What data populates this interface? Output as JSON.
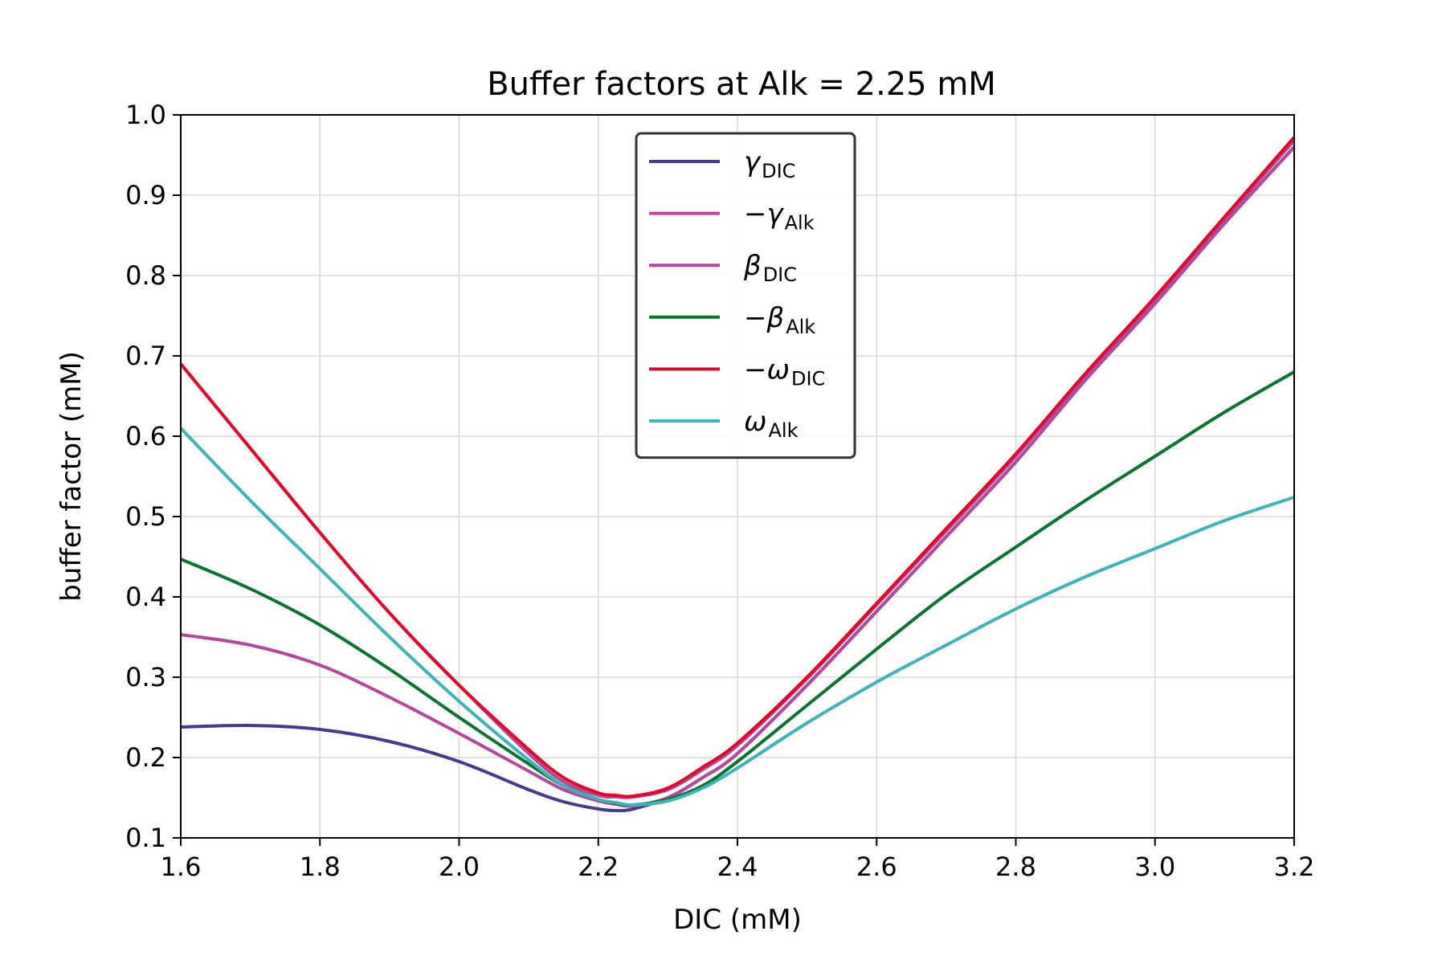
{
  "chart_data": {
    "type": "line",
    "title": "Buffer factors at Alk = 2.25 mM",
    "xlabel": "DIC (mM)",
    "ylabel": "buffer factor (mM)",
    "xlim": [
      1.6,
      3.2
    ],
    "ylim": [
      0.1,
      1.0
    ],
    "xticks": [
      "1.6",
      "1.8",
      "2.0",
      "2.2",
      "2.4",
      "2.6",
      "2.8",
      "3.0",
      "3.2"
    ],
    "yticks": [
      "0.1",
      "0.2",
      "0.3",
      "0.4",
      "0.5",
      "0.6",
      "0.7",
      "0.8",
      "0.9",
      "1.0"
    ],
    "grid": true,
    "legend_position": "upper center",
    "x": [
      1.6,
      1.7,
      1.8,
      1.9,
      2.0,
      2.1,
      2.15,
      2.2,
      2.225,
      2.25,
      2.3,
      2.35,
      2.4,
      2.5,
      2.6,
      2.7,
      2.8,
      2.9,
      3.0,
      3.1,
      3.2
    ],
    "series": [
      {
        "prefix": "",
        "symbol": "γ",
        "subscript": "DIC",
        "color": "#463a8f",
        "values": [
          0.238,
          0.24,
          0.235,
          0.22,
          0.195,
          0.16,
          0.145,
          0.136,
          0.134,
          0.136,
          0.15,
          0.175,
          0.205,
          0.29,
          0.382,
          0.475,
          0.568,
          0.67,
          0.765,
          0.865,
          0.96
        ]
      },
      {
        "prefix": "−",
        "symbol": "γ",
        "subscript": "Alk",
        "color": "#b5489b",
        "values": [
          0.69,
          0.585,
          0.48,
          0.38,
          0.29,
          0.205,
          0.17,
          0.153,
          0.151,
          0.151,
          0.16,
          0.185,
          0.215,
          0.298,
          0.39,
          0.482,
          0.575,
          0.675,
          0.77,
          0.87,
          0.968
        ]
      },
      {
        "prefix": "",
        "symbol": "β",
        "subscript": "DIC",
        "color": "#b5489b",
        "values": [
          0.353,
          0.34,
          0.315,
          0.275,
          0.23,
          0.183,
          0.16,
          0.146,
          0.142,
          0.14,
          0.15,
          0.175,
          0.205,
          0.29,
          0.382,
          0.475,
          0.568,
          0.67,
          0.765,
          0.865,
          0.96
        ]
      },
      {
        "prefix": "−",
        "symbol": "β",
        "subscript": "Alk",
        "color": "#0a7331",
        "values": [
          0.447,
          0.41,
          0.365,
          0.31,
          0.25,
          0.192,
          0.165,
          0.148,
          0.143,
          0.141,
          0.148,
          0.165,
          0.195,
          0.265,
          0.335,
          0.403,
          0.462,
          0.52,
          0.575,
          0.63,
          0.68
        ]
      },
      {
        "prefix": "−",
        "symbol": "ω",
        "subscript": "DIC",
        "color": "#e2062a",
        "values": [
          0.69,
          0.585,
          0.48,
          0.38,
          0.29,
          0.21,
          0.175,
          0.156,
          0.153,
          0.152,
          0.162,
          0.188,
          0.218,
          0.3,
          0.392,
          0.485,
          0.578,
          0.678,
          0.773,
          0.873,
          0.972
        ]
      },
      {
        "prefix": "",
        "symbol": "ω",
        "subscript": "Alk",
        "color": "#3eb3b8",
        "values": [
          0.61,
          0.52,
          0.435,
          0.35,
          0.27,
          0.197,
          0.165,
          0.148,
          0.144,
          0.141,
          0.146,
          0.162,
          0.187,
          0.243,
          0.294,
          0.34,
          0.385,
          0.425,
          0.46,
          0.495,
          0.524
        ]
      }
    ]
  }
}
